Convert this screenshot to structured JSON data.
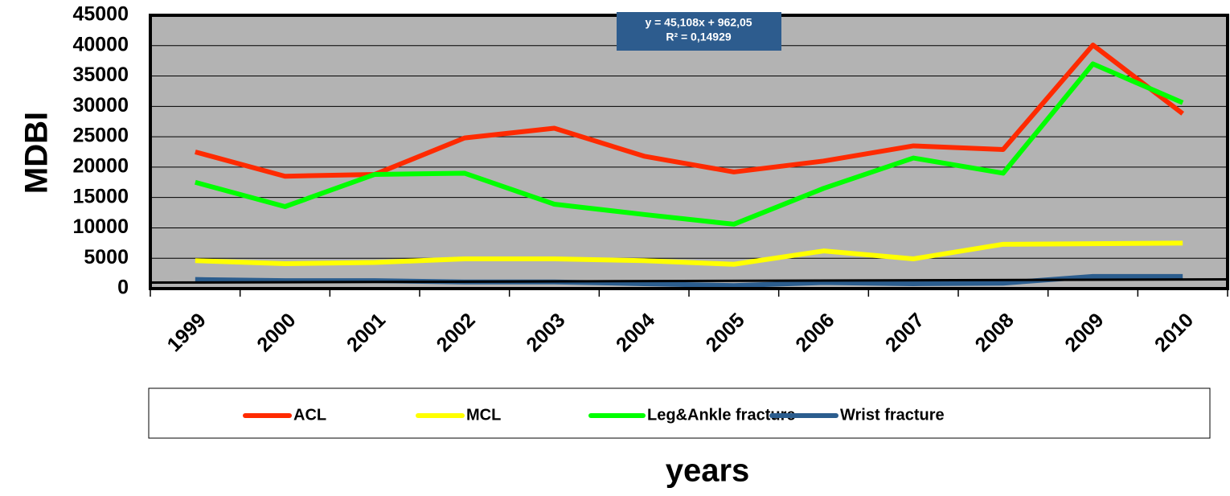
{
  "chart_data": {
    "type": "line",
    "ylabel": "MDBI",
    "xlabel": "years",
    "annotation": [
      "y = 45,108x + 962,05",
      "R² = 0,14929"
    ],
    "categories": [
      "1999",
      "2000",
      "2001",
      "2002",
      "2003",
      "2004",
      "2005",
      "2006",
      "2007",
      "2008",
      "2009",
      "2010"
    ],
    "series": [
      {
        "name": "ACL",
        "color": "#ff2a00",
        "values": [
          22500,
          18500,
          18800,
          24800,
          26400,
          21800,
          19200,
          21000,
          23500,
          22900,
          40100,
          28800
        ]
      },
      {
        "name": "MCL",
        "color": "#ffff00",
        "values": [
          4600,
          4100,
          4300,
          4900,
          4900,
          4600,
          4000,
          6200,
          4900,
          7300,
          7400,
          7500
        ]
      },
      {
        "name": "Leg&Ankle fracture",
        "color": "#00ff00",
        "values": [
          17500,
          13500,
          18800,
          19000,
          13900,
          12200,
          10600,
          16500,
          21500,
          19000,
          37000,
          30600
        ]
      },
      {
        "name": "Wrist fracture",
        "color": "#2b5d8e",
        "values": [
          1500,
          1300,
          1300,
          1100,
          1100,
          800,
          500,
          1000,
          800,
          900,
          2000,
          2000
        ]
      }
    ],
    "trendline": {
      "slope": 45.108,
      "intercept": 962.05,
      "color": "#000000"
    },
    "ylim": [
      0,
      45000
    ],
    "yticks": [
      0,
      5000,
      10000,
      15000,
      20000,
      25000,
      30000,
      35000,
      40000,
      45000
    ],
    "grid": true,
    "legend": "bottom"
  }
}
